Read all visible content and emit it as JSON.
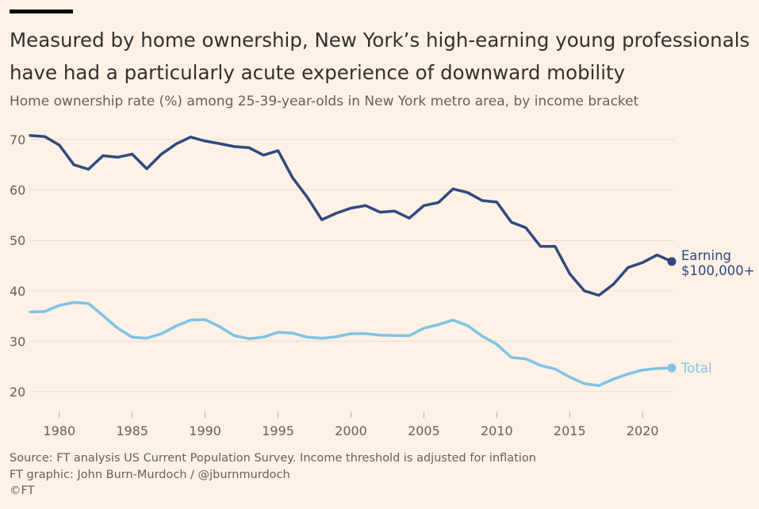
{
  "header": {
    "title_line1": "Measured by home ownership, New York’s high-earning young professionals",
    "title_line2": "have had a particularly acute experience of downward mobility",
    "subtitle": "Home ownership rate (%) among 25-39-year-olds in New York metro area, by income bracket"
  },
  "footer": {
    "source": "Source: FT analysis US Current Population Survey. Income threshold is adjusted for inflation",
    "graphic_credit": "FT graphic: John Burn-Murdoch / @jburnmurdoch",
    "copyright": "©FT"
  },
  "colors": {
    "background": "#fff1e5",
    "high_earning": "#2e4a7f",
    "total": "#7ec3e6",
    "gridline": "#e9ddd0",
    "tick_text": "#66605c"
  },
  "chart_data": {
    "type": "line",
    "title": "Home ownership rate (%) among 25-39-year-olds in New York metro area, by income bracket",
    "xlabel": "",
    "ylabel": "Home ownership rate (%)",
    "xlim": [
      1978,
      2022
    ],
    "ylim": [
      18,
      72
    ],
    "grid": true,
    "x_ticks": [
      1980,
      1985,
      1990,
      1995,
      2000,
      2005,
      2010,
      2015,
      2020
    ],
    "y_ticks": [
      20,
      30,
      40,
      50,
      60,
      70
    ],
    "x": [
      1978,
      1979,
      1980,
      1981,
      1982,
      1983,
      1984,
      1985,
      1986,
      1987,
      1988,
      1989,
      1990,
      1991,
      1992,
      1993,
      1994,
      1995,
      1996,
      1997,
      1998,
      1999,
      2000,
      2001,
      2002,
      2003,
      2004,
      2005,
      2006,
      2007,
      2008,
      2009,
      2010,
      2011,
      2012,
      2013,
      2014,
      2015,
      2016,
      2017,
      2018,
      2019,
      2020,
      2021,
      2022
    ],
    "series": [
      {
        "name": "Earning $100,000+",
        "label_line1": "Earning",
        "label_line2": "$100,000+",
        "color": "#2e4a7f",
        "values": [
          70.8,
          70.6,
          68.9,
          65.0,
          64.1,
          66.8,
          66.5,
          67.1,
          64.2,
          67.1,
          69.1,
          70.5,
          69.7,
          69.2,
          68.6,
          68.4,
          66.9,
          67.8,
          62.4,
          58.6,
          54.1,
          55.4,
          56.4,
          56.9,
          55.6,
          55.8,
          54.4,
          56.9,
          57.5,
          60.2,
          59.5,
          57.9,
          57.6,
          53.6,
          52.5,
          48.8,
          48.8,
          43.4,
          40.0,
          39.1,
          41.3,
          44.6,
          45.6,
          47.1,
          45.8
        ]
      },
      {
        "name": "Total",
        "label_line1": "Total",
        "color": "#7ec3e6",
        "values": [
          35.8,
          35.9,
          37.1,
          37.7,
          37.5,
          35.1,
          32.6,
          30.8,
          30.6,
          31.5,
          33.0,
          34.2,
          34.3,
          32.9,
          31.1,
          30.5,
          30.8,
          31.8,
          31.6,
          30.8,
          30.6,
          30.9,
          31.5,
          31.5,
          31.2,
          31.1,
          31.1,
          32.6,
          33.3,
          34.2,
          33.1,
          31.0,
          29.4,
          26.8,
          26.5,
          25.2,
          24.5,
          22.9,
          21.6,
          21.2,
          22.5,
          23.5,
          24.3,
          24.6,
          24.7
        ]
      }
    ]
  }
}
